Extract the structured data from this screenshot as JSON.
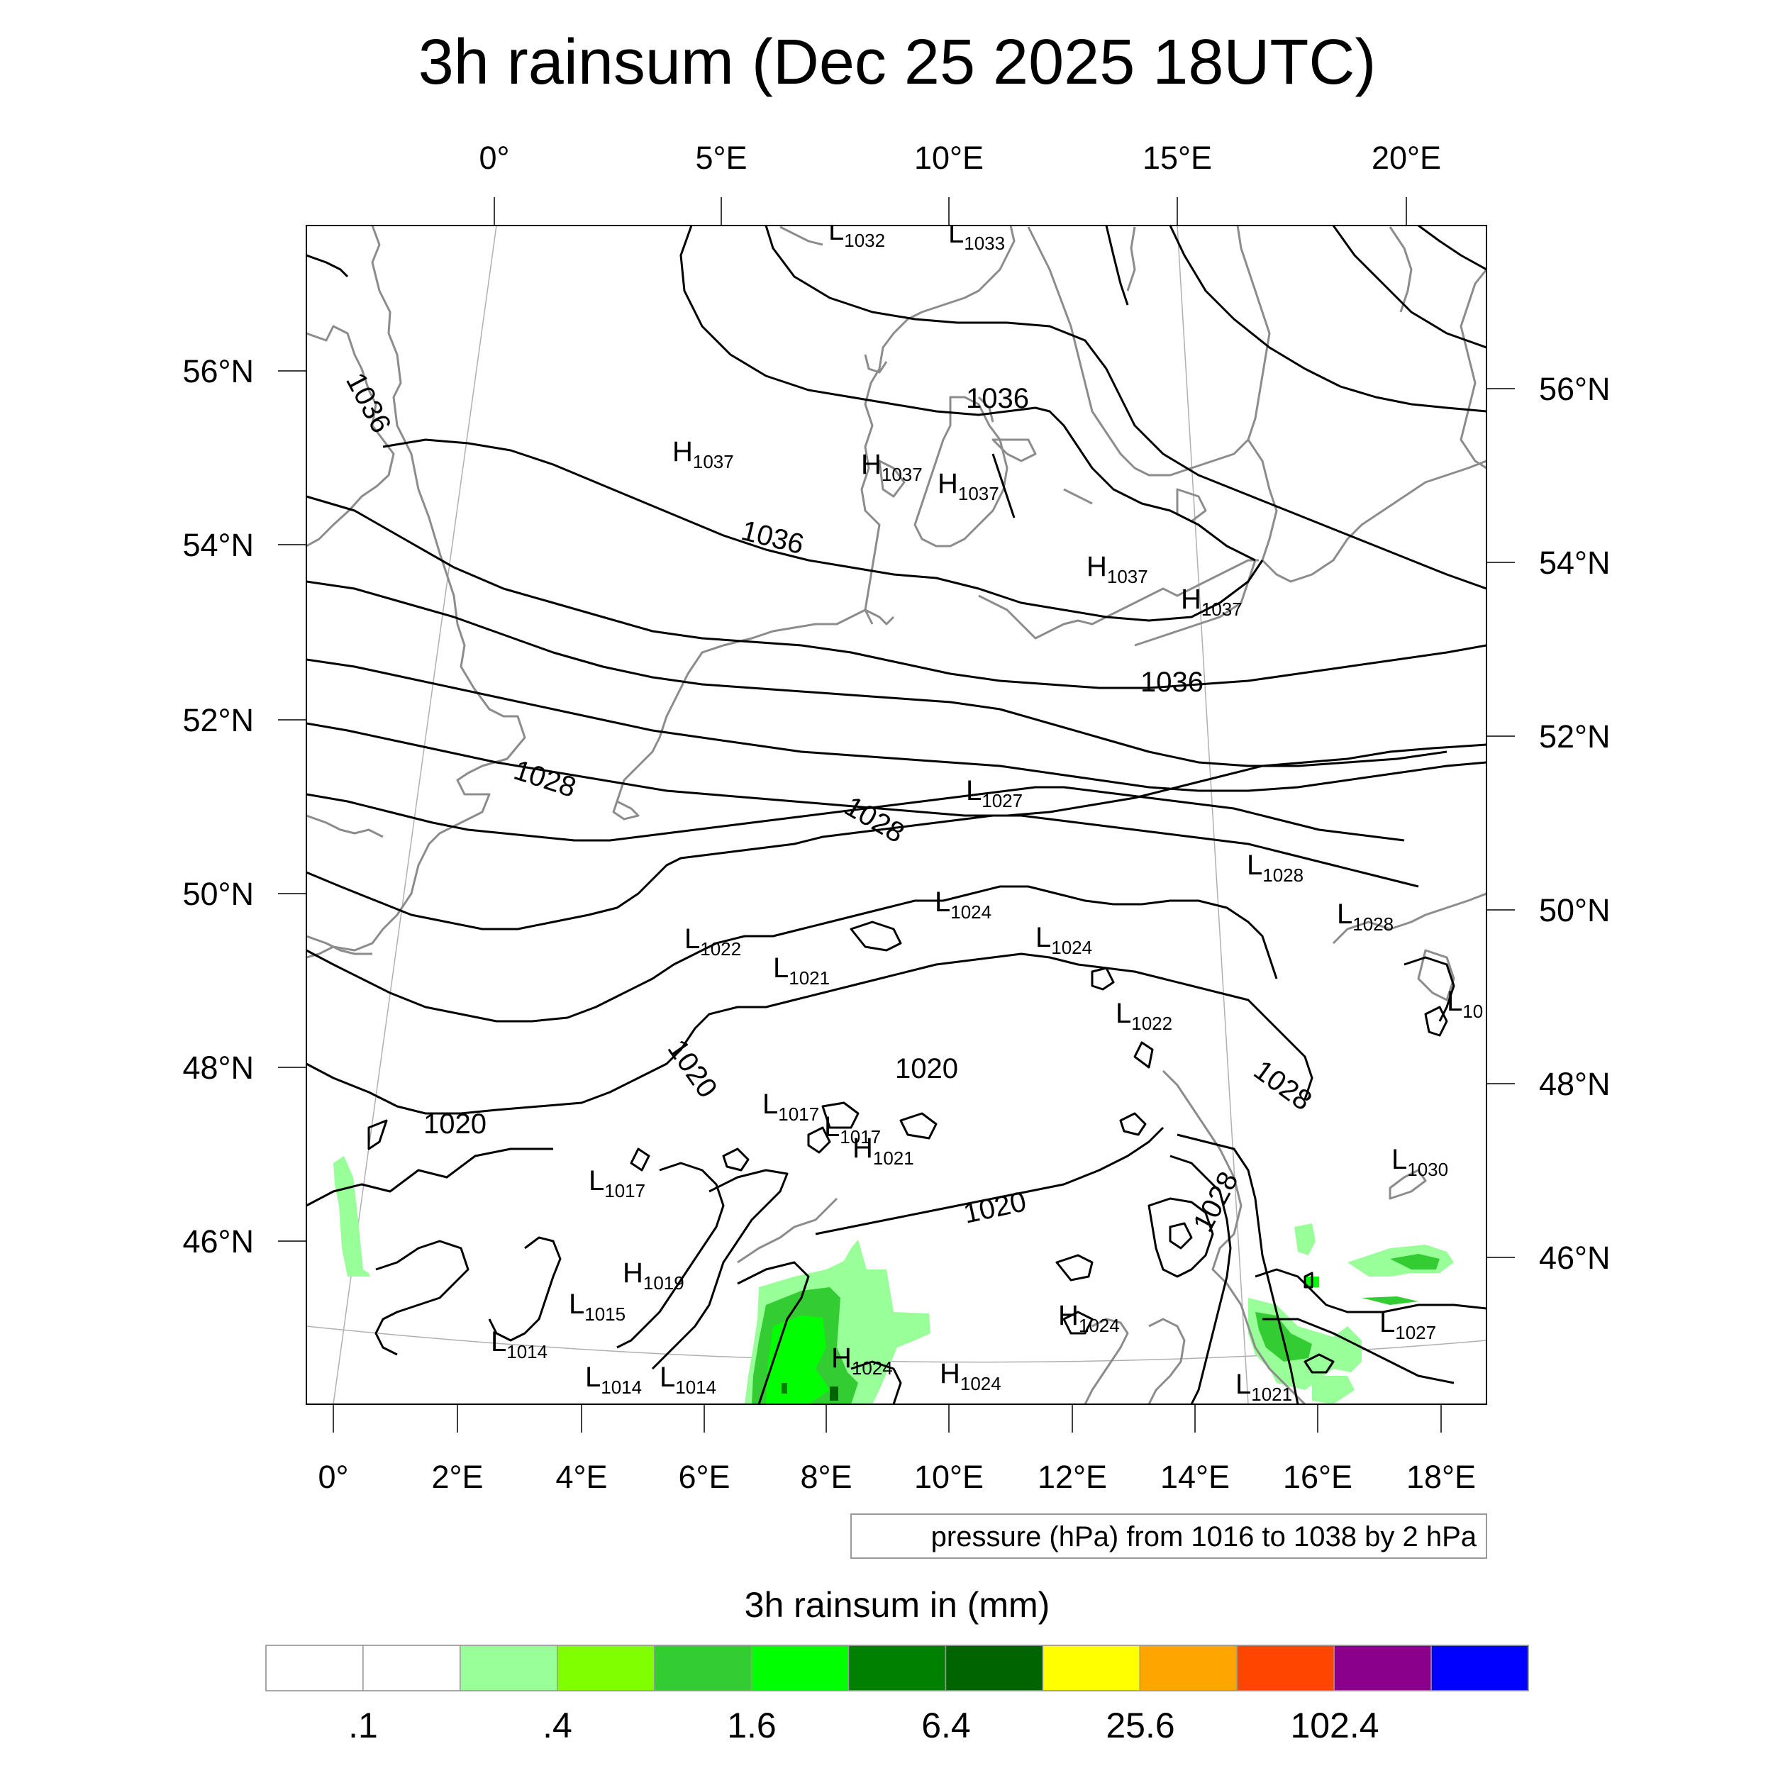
{
  "title": "3h rainsum (Dec 25 2025 18UTC)",
  "top_lon_ticks": [
    "0°",
    "5°E",
    "10°E",
    "15°E",
    "20°E"
  ],
  "bottom_lon_ticks": [
    "0°",
    "2°E",
    "4°E",
    "6°E",
    "8°E",
    "10°E",
    "12°E",
    "14°E",
    "16°E",
    "18°E"
  ],
  "left_lat_ticks": [
    "56°N",
    "54°N",
    "52°N",
    "50°N",
    "48°N",
    "46°N"
  ],
  "right_lat_ticks": [
    "56°N",
    "54°N",
    "52°N",
    "50°N",
    "48°N",
    "46°N"
  ],
  "pressure_note": "pressure (hPa) from 1016 to 1038 by 2 hPa",
  "colorbar": {
    "title": "3h rainsum in (mm)",
    "colors": [
      "#ffffff",
      "#ffffff",
      "#99ff99",
      "#80ff00",
      "#33cc33",
      "#00ff00",
      "#008000",
      "#006400",
      "#ffff00",
      "#ffa500",
      "#ff4500",
      "#8b008b",
      "#0000ff"
    ],
    "labels": [
      ".1",
      ".4",
      "1.6",
      "6.4",
      "25.6",
      "102.4"
    ]
  },
  "isobar_labels": [
    "1036",
    "1036",
    "1036",
    "1036",
    "1028",
    "1028",
    "1028",
    "1028",
    "1020",
    "1020",
    "1020",
    "1020"
  ],
  "pressure_centers": [
    {
      "type": "L",
      "value": "1032"
    },
    {
      "type": "L",
      "value": "1033"
    },
    {
      "type": "H",
      "value": "1037"
    },
    {
      "type": "H",
      "value": "1037"
    },
    {
      "type": "H",
      "value": "1037"
    },
    {
      "type": "H",
      "value": "1037"
    },
    {
      "type": "H",
      "value": "1037"
    },
    {
      "type": "L",
      "value": "1027"
    },
    {
      "type": "L",
      "value": "1028"
    },
    {
      "type": "L",
      "value": "1028"
    },
    {
      "type": "L",
      "value": "1024"
    },
    {
      "type": "L",
      "value": "1024"
    },
    {
      "type": "L",
      "value": "1022"
    },
    {
      "type": "L",
      "value": "1021"
    },
    {
      "type": "L",
      "value": "1022"
    },
    {
      "type": "L",
      "value": "10"
    },
    {
      "type": "L",
      "value": "1017"
    },
    {
      "type": "L",
      "value": "1017"
    },
    {
      "type": "H",
      "value": "1021"
    },
    {
      "type": "L",
      "value": "1030"
    },
    {
      "type": "L",
      "value": "1017"
    },
    {
      "type": "H",
      "value": "1019"
    },
    {
      "type": "L",
      "value": "1015"
    },
    {
      "type": "L",
      "value": "1014"
    },
    {
      "type": "L",
      "value": "1014"
    },
    {
      "type": "L",
      "value": "1014"
    },
    {
      "type": "H",
      "value": "1024"
    },
    {
      "type": "H",
      "value": "1024"
    },
    {
      "type": "H",
      "value": "1024"
    },
    {
      "type": "L",
      "value": "1027"
    },
    {
      "type": "L",
      "value": "1021"
    }
  ],
  "colors": {
    "coastline": "#8c8c8c",
    "isobar": "#000000",
    "graticule": "#b0b0b0",
    "frame": "#000000"
  }
}
